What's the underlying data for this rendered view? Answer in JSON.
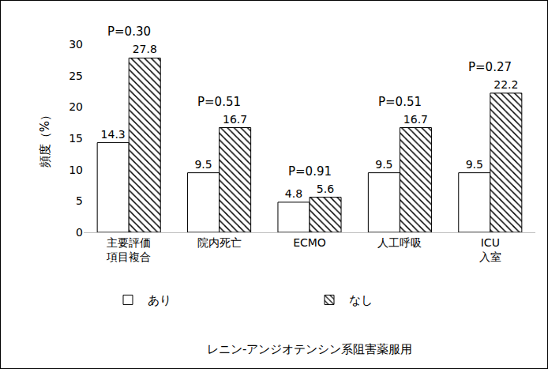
{
  "chart_data": {
    "type": "bar",
    "categories": [
      "主要評価\n項目複合",
      "院内死亡",
      "ECMO",
      "人工呼吸",
      "ICU\n入室"
    ],
    "series": [
      {
        "name": "あり",
        "color": "#ffffff",
        "marker": "solid",
        "values": [
          14.3,
          9.5,
          4.8,
          9.5,
          9.5
        ]
      },
      {
        "name": "なし",
        "color": "#000000",
        "marker": "hatch",
        "values": [
          27.8,
          16.7,
          5.6,
          16.7,
          22.2
        ]
      }
    ],
    "annotations": [
      "P=0.30",
      "P=0.51",
      "P=0.91",
      "P=0.51",
      "P=0.27"
    ],
    "y_label": "頻度（%）",
    "x_label": "レニン-アンジオテンシン系阻害薬服用",
    "ylim": [
      0,
      30
    ],
    "yticks": [
      0,
      5,
      10,
      15,
      20,
      25,
      30
    ],
    "grid": false,
    "legend": "bottom",
    "data_labels": true
  }
}
